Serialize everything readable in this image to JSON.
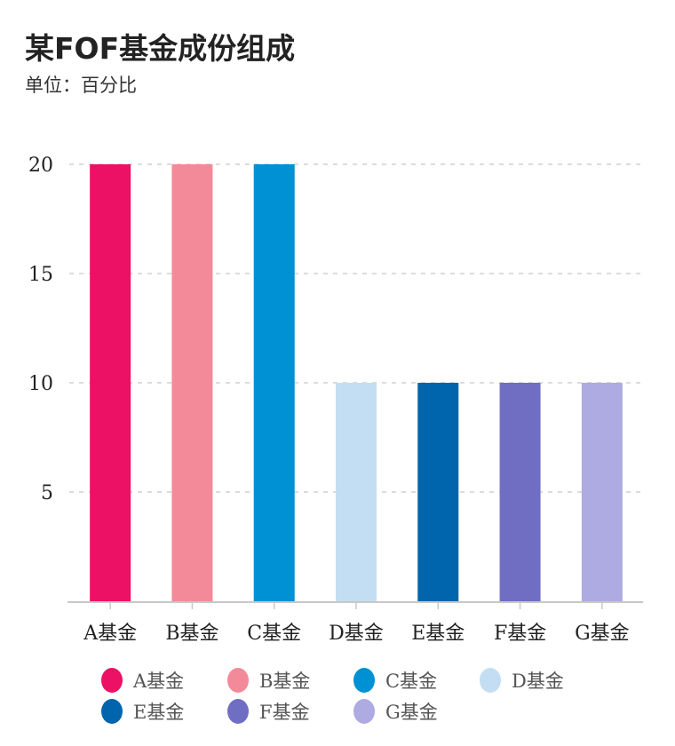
{
  "chart_data": {
    "type": "bar",
    "title": "某FOF基金成份组成",
    "subtitle": "单位：百分比",
    "xlabel": "",
    "ylabel": "",
    "categories": [
      "A基金",
      "B基金",
      "C基金",
      "D基金",
      "E基金",
      "F基金",
      "G基金"
    ],
    "values": [
      20,
      20,
      20,
      10,
      10,
      10,
      10
    ],
    "colors": [
      "#ec1165",
      "#f28a9a",
      "#0090d4",
      "#c3def2",
      "#0065ac",
      "#706ec3",
      "#aeaae2"
    ],
    "ylim": [
      0,
      20
    ],
    "yticks": [
      5,
      10,
      15,
      20
    ],
    "grid": true,
    "legend": {
      "position": "bottom-left",
      "entries": [
        "A基金",
        "B基金",
        "C基金",
        "D基金",
        "E基金",
        "F基金",
        "G基金"
      ]
    }
  }
}
